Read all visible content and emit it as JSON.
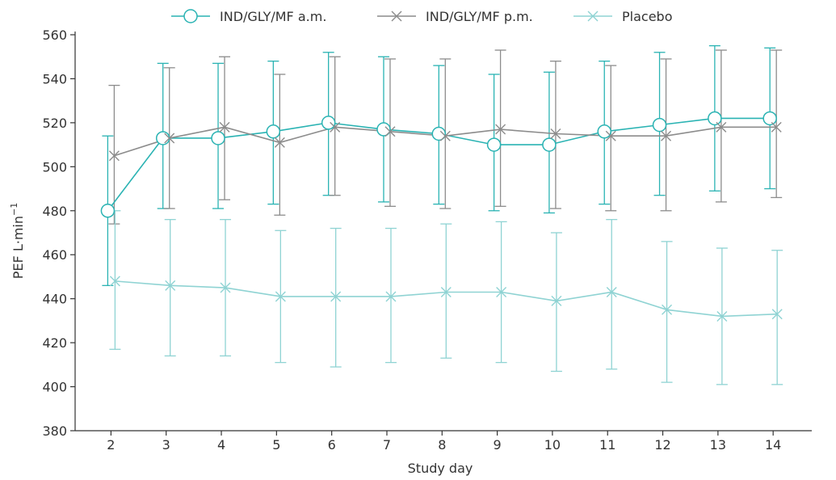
{
  "chart_data": {
    "type": "line",
    "title": "",
    "xlabel": "Study day",
    "ylabel": "PEF L·min",
    "ylabel_superscript": "−1",
    "x": [
      2,
      3,
      4,
      5,
      6,
      7,
      8,
      9,
      10,
      11,
      12,
      13,
      14
    ],
    "xlim": [
      1.35,
      14.7
    ],
    "ylim": [
      380,
      560
    ],
    "yticks": [
      380,
      400,
      420,
      440,
      460,
      480,
      500,
      520,
      540,
      560
    ],
    "grid": false,
    "legend_position": "top-center",
    "series": [
      {
        "name": "IND/GLY/MF a.m.",
        "color": "#2ab3b3",
        "marker": "circle",
        "values": [
          480,
          513,
          513,
          516,
          520,
          517,
          515,
          510,
          510,
          516,
          519,
          522,
          522
        ],
        "err_low": [
          446,
          481,
          481,
          483,
          487,
          484,
          483,
          480,
          479,
          483,
          487,
          489,
          490
        ],
        "err_high": [
          514,
          547,
          547,
          548,
          552,
          550,
          546,
          542,
          543,
          548,
          552,
          555,
          554
        ]
      },
      {
        "name": "IND/GLY/MF p.m.",
        "color": "#8c8c8c",
        "marker": "x",
        "values": [
          505,
          513,
          518,
          511,
          518,
          516,
          514,
          517,
          515,
          514,
          514,
          518,
          518
        ],
        "err_low": [
          474,
          481,
          485,
          478,
          487,
          482,
          481,
          482,
          481,
          480,
          480,
          484,
          486
        ],
        "err_high": [
          537,
          545,
          550,
          542,
          550,
          549,
          549,
          553,
          548,
          546,
          549,
          553,
          553
        ]
      },
      {
        "name": "Placebo",
        "color": "#8fd3d3",
        "marker": "x",
        "values": [
          448,
          446,
          445,
          441,
          441,
          441,
          443,
          443,
          439,
          443,
          435,
          432,
          433
        ],
        "err_low": [
          417,
          414,
          414,
          411,
          409,
          411,
          413,
          411,
          407,
          408,
          402,
          401,
          401
        ],
        "err_high": [
          480,
          476,
          476,
          471,
          472,
          472,
          474,
          475,
          470,
          476,
          466,
          463,
          462
        ]
      }
    ]
  }
}
